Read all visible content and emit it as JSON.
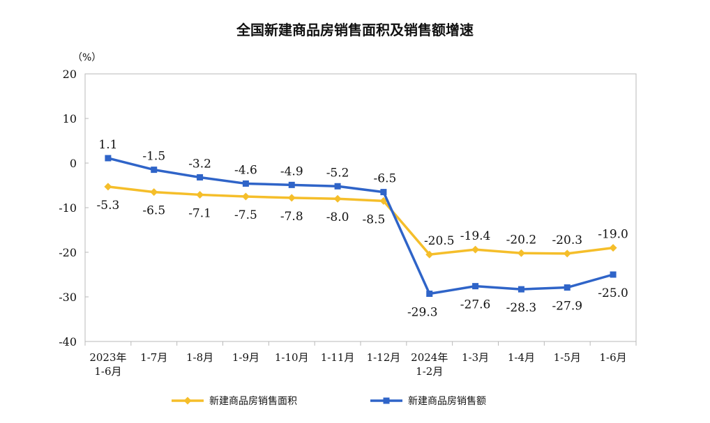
{
  "chart_data": {
    "type": "line",
    "title": "全国新建商品房销售面积及销售额增速",
    "unit_label": "（%）",
    "ylim": [
      -40,
      20
    ],
    "yticks": [
      "20",
      "10",
      "0",
      "-10",
      "-20",
      "-30",
      "-40"
    ],
    "ytick_values": [
      20,
      10,
      0,
      -10,
      -20,
      -30,
      -40
    ],
    "categories": [
      [
        "2023年",
        "1-6月"
      ],
      [
        "1-7月"
      ],
      [
        "1-8月"
      ],
      [
        "1-9月"
      ],
      [
        "1-10月"
      ],
      [
        "1-11月"
      ],
      [
        "1-12月"
      ],
      [
        "2024年",
        "1-2月"
      ],
      [
        "1-3月"
      ],
      [
        "1-4月"
      ],
      [
        "1-5月"
      ],
      [
        "1-6月"
      ]
    ],
    "series": [
      {
        "name": "新建商品房销售面积",
        "color": "#F5BE2A",
        "marker": "diamond",
        "values": [
          -5.3,
          -6.5,
          -7.1,
          -7.5,
          -7.8,
          -8.0,
          -8.5,
          -20.5,
          -19.4,
          -20.2,
          -20.3,
          -19.0
        ],
        "labels": [
          "-5.3",
          "-6.5",
          "-7.1",
          "-7.5",
          "-7.8",
          "-8.0",
          "-8.5",
          "-20.5",
          "-19.4",
          "-20.2",
          "-20.3",
          "-19.0"
        ]
      },
      {
        "name": "新建商品房销售额",
        "color": "#2F64C8",
        "marker": "square",
        "values": [
          1.1,
          -1.5,
          -3.2,
          -4.6,
          -4.9,
          -5.2,
          -6.5,
          -29.3,
          -27.6,
          -28.3,
          -27.9,
          -25.0
        ],
        "labels": [
          "1.1",
          "-1.5",
          "-3.2",
          "-4.6",
          "-4.9",
          "-5.2",
          "-6.5",
          "-29.3",
          "-27.6",
          "-28.3",
          "-27.9",
          "-25.0"
        ]
      }
    ],
    "grid": false,
    "legend_position": "bottom"
  }
}
